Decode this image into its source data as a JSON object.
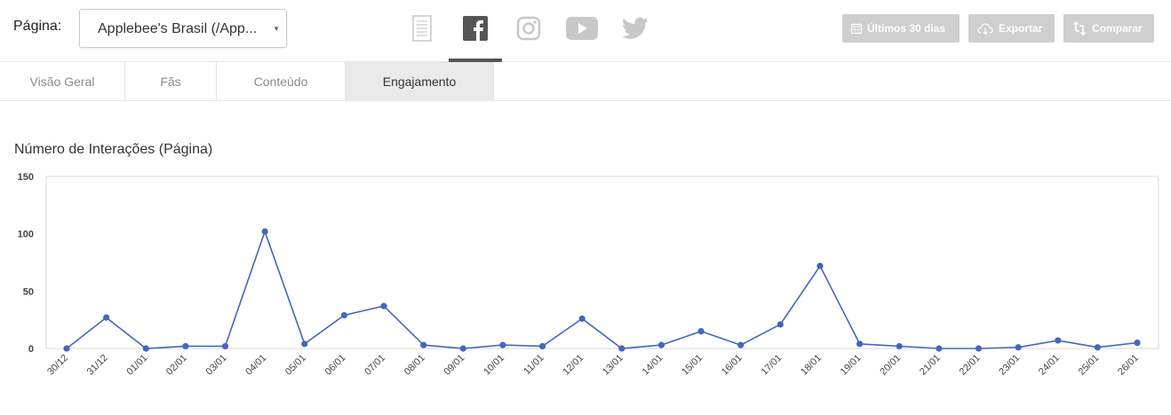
{
  "header": {
    "page_label": "Página:",
    "page_select_value": "Applebee's Brasil (/App...",
    "social": [
      {
        "name": "report-icon",
        "active": false
      },
      {
        "name": "facebook-icon",
        "active": true
      },
      {
        "name": "instagram-icon",
        "active": false
      },
      {
        "name": "youtube-icon",
        "active": false
      },
      {
        "name": "twitter-icon",
        "active": false
      }
    ],
    "buttons": {
      "date_range": "Últimos 30 dias",
      "export": "Exportar",
      "compare": "Comparar"
    }
  },
  "tabs": [
    {
      "label": "Visão Geral",
      "active": false
    },
    {
      "label": "Fãs",
      "active": false
    },
    {
      "label": "Conteúdo",
      "active": false
    },
    {
      "label": "Engajamento",
      "active": true
    }
  ],
  "colors": {
    "accent_line": "#4466bb",
    "button_bg": "#cfcfcf",
    "icon_active": "#555555",
    "icon_inactive": "#c8c8c8"
  },
  "chart_data": {
    "type": "line",
    "title": "Número de Interações (Página)",
    "categories": [
      "30/12",
      "31/12",
      "01/01",
      "02/01",
      "03/01",
      "04/01",
      "05/01",
      "06/01",
      "07/01",
      "08/01",
      "09/01",
      "10/01",
      "11/01",
      "12/01",
      "13/01",
      "14/01",
      "15/01",
      "16/01",
      "17/01",
      "18/01",
      "19/01",
      "20/01",
      "21/01",
      "22/01",
      "23/01",
      "24/01",
      "25/01",
      "26/01"
    ],
    "series": [
      {
        "values": [
          0,
          27,
          0,
          2,
          2,
          102,
          4,
          29,
          37,
          3,
          0,
          3,
          2,
          26,
          0,
          3,
          15,
          3,
          21,
          72,
          4,
          2,
          0,
          0,
          1,
          7,
          1,
          5
        ]
      }
    ],
    "yticks": [
      0,
      50,
      100,
      150
    ],
    "ylim": [
      0,
      150
    ],
    "grid": false,
    "legend": "none"
  }
}
